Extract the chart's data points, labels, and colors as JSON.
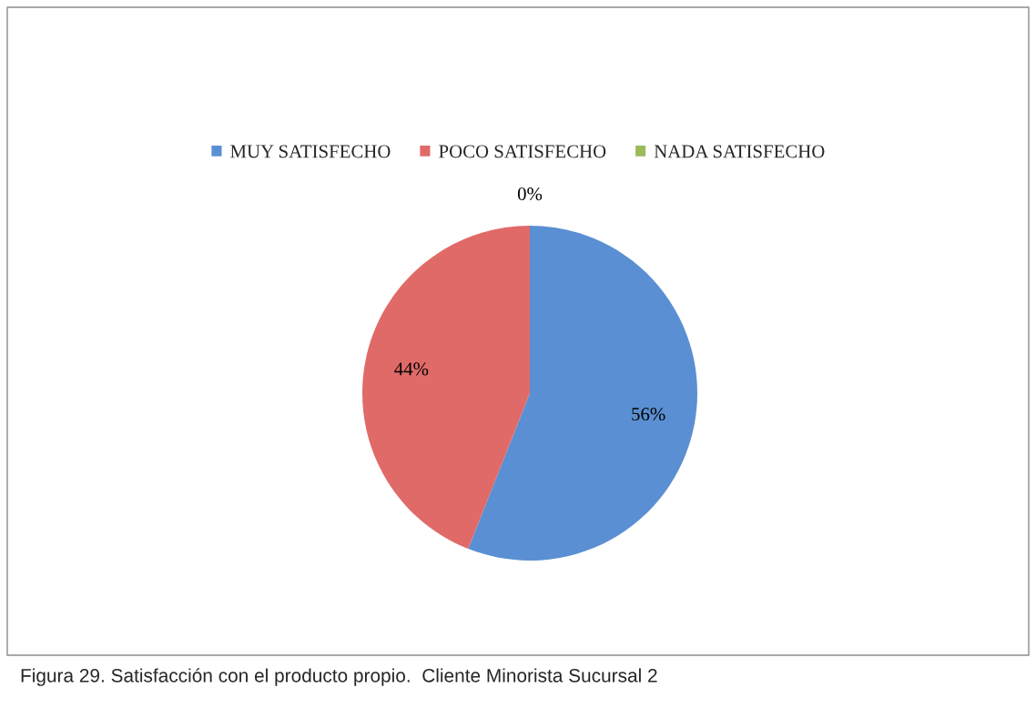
{
  "chart_data": {
    "type": "pie",
    "categories": [
      "MUY SATISFECHO",
      "POCO SATISFECHO",
      "NADA SATISFECHO"
    ],
    "values": [
      56,
      44,
      0
    ],
    "colors": [
      "#5b8fd3",
      "#e06a68",
      "#9bbb59"
    ],
    "value_labels": [
      "56%",
      "44%",
      "0%"
    ],
    "legend": "top",
    "annotations": [
      "Figura 29. Satisfacción con el producto propio.  Cliente Minorista Sucursal 2"
    ]
  }
}
